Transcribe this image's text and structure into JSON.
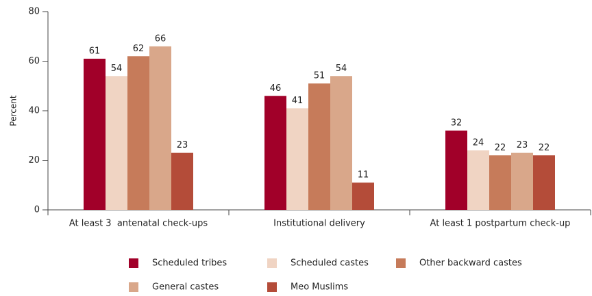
{
  "chart_data": {
    "type": "bar",
    "categories": [
      "At least 3  antenatal check-ups",
      "Institutional delivery",
      "At least 1 postpartum check-up"
    ],
    "series": [
      {
        "name": "Scheduled tribes",
        "color": "#a10029",
        "values": [
          61,
          46,
          32
        ]
      },
      {
        "name": "Scheduled castes",
        "color": "#f0d4c3",
        "values": [
          54,
          41,
          24
        ]
      },
      {
        "name": "Other backward castes",
        "color": "#c67b5a",
        "values": [
          62,
          51,
          22
        ]
      },
      {
        "name": "General castes",
        "color": "#d9a78a",
        "values": [
          66,
          54,
          23
        ]
      },
      {
        "name": "Meo Muslims",
        "color": "#b44c39",
        "values": [
          23,
          11,
          22
        ]
      }
    ],
    "ylabel": "Percent",
    "ylim": [
      0,
      80
    ],
    "yticks": [
      0,
      20,
      40,
      60,
      80
    ],
    "grid": false,
    "legend": "bottom"
  }
}
